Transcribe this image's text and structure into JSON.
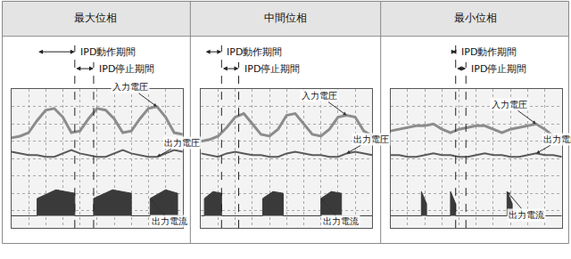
{
  "chart_data": [
    {
      "type": "line",
      "title": "最大位相",
      "xlim": [
        0,
        10
      ],
      "ylim": [
        -4,
        4
      ],
      "xticks": [
        0,
        1,
        2,
        3,
        4,
        5,
        6,
        7,
        8,
        9,
        10
      ],
      "yticks": [
        -4,
        -3,
        -2,
        -1,
        0,
        1,
        2,
        3,
        4
      ],
      "grid": true,
      "tick_labels": false,
      "series": [
        {
          "name": "入力電圧",
          "color": "#8c8c8c",
          "x": [
            0,
            0.5,
            1,
            1.5,
            2,
            2.5,
            3,
            3.5,
            4,
            4.5,
            5,
            5.5,
            6,
            6.5,
            7,
            7.5,
            8,
            8.5,
            9,
            9.5,
            10
          ],
          "values": [
            1.2,
            1.3,
            1.5,
            2.2,
            2.8,
            2.9,
            2.4,
            1.5,
            1.6,
            2.3,
            2.9,
            2.8,
            2.3,
            1.5,
            1.6,
            2.3,
            2.9,
            3.0,
            2.4,
            1.5,
            1.4
          ]
        },
        {
          "name": "出力電圧",
          "color": "#5a5a5a",
          "x": [
            0,
            0.5,
            1,
            1.5,
            2,
            2.5,
            3,
            3.5,
            4,
            4.5,
            5,
            5.5,
            6,
            6.5,
            7,
            7.5,
            8,
            8.5,
            9,
            9.5,
            10
          ],
          "values": [
            0.4,
            0.3,
            0.2,
            0.2,
            0.1,
            0.1,
            0.3,
            0.5,
            0.3,
            0.2,
            0.1,
            0.1,
            0.3,
            0.5,
            0.3,
            0.2,
            0.1,
            0.1,
            0.3,
            0.5,
            0.4
          ]
        },
        {
          "name": "出力電流",
          "color": "#3a3a3a",
          "type": "area",
          "x": [
            0,
            1.5,
            1.5,
            2.6,
            3.7,
            3.7,
            4.8,
            4.8,
            5.9,
            7.0,
            7.0,
            8.1,
            8.1,
            9.0,
            9.7,
            9.7,
            10
          ],
          "values": [
            -3.3,
            -3.3,
            -2.3,
            -1.8,
            -2.0,
            -3.3,
            -3.3,
            -2.3,
            -1.8,
            -2.0,
            -3.3,
            -3.3,
            -2.3,
            -1.8,
            -2.0,
            -3.3,
            -3.3
          ]
        }
      ],
      "annotations": [
        {
          "text": "IPD動作期間",
          "x0": 1.5,
          "x1": 3.7
        },
        {
          "text": "IPD停止期間",
          "x0": 3.7,
          "x1": 4.8
        }
      ]
    },
    {
      "type": "line",
      "title": "中間位相",
      "xlim": [
        0,
        10
      ],
      "ylim": [
        -4,
        4
      ],
      "xticks": [
        0,
        1,
        2,
        3,
        4,
        5,
        6,
        7,
        8,
        9,
        10
      ],
      "yticks": [
        -4,
        -3,
        -2,
        -1,
        0,
        1,
        2,
        3,
        4
      ],
      "grid": true,
      "tick_labels": false,
      "series": [
        {
          "name": "入力電圧",
          "color": "#8c8c8c",
          "x": [
            0,
            0.5,
            1,
            1.5,
            2,
            2.5,
            3,
            3.5,
            4,
            4.5,
            5,
            5.5,
            6,
            6.5,
            7,
            7.5,
            8,
            8.5,
            9,
            9.5,
            10
          ],
          "values": [
            1.0,
            1.1,
            1.3,
            1.8,
            2.4,
            2.6,
            2.0,
            1.4,
            1.3,
            1.7,
            2.5,
            2.6,
            2.0,
            1.4,
            1.3,
            1.7,
            2.4,
            2.5,
            2.4,
            1.6,
            1.3
          ]
        },
        {
          "name": "出力電圧",
          "color": "#5a5a5a",
          "x": [
            0,
            0.5,
            1,
            1.5,
            2,
            2.5,
            3,
            3.5,
            4,
            4.5,
            5,
            5.5,
            6,
            6.5,
            7,
            7.5,
            8,
            8.5,
            9,
            9.5,
            10
          ],
          "values": [
            0.3,
            0.2,
            0.1,
            0.3,
            0.4,
            0.3,
            0.2,
            0.2,
            0.1,
            0.1,
            0.3,
            0.4,
            0.3,
            0.2,
            0.2,
            0.1,
            0.1,
            0.3,
            0.4,
            0.3,
            0.2
          ]
        },
        {
          "name": "出力電流",
          "color": "#3a3a3a",
          "type": "area",
          "x": [
            0,
            0.2,
            0.2,
            0.7,
            1.2,
            1.2,
            3.6,
            3.6,
            4.2,
            4.8,
            4.8,
            7.0,
            7.0,
            7.6,
            8.2,
            8.2,
            10
          ],
          "values": [
            -3.3,
            -3.3,
            -2.3,
            -1.9,
            -2.0,
            -3.3,
            -3.3,
            -2.3,
            -1.9,
            -2.0,
            -3.3,
            -3.3,
            -2.3,
            -1.9,
            -2.0,
            -3.3,
            -3.3
          ]
        }
      ],
      "annotations": [
        {
          "text": "IPD動作期間",
          "x0": 0.2,
          "x1": 1.2
        },
        {
          "text": "IPD停止期間",
          "x0": 1.2,
          "x1": 2.2
        }
      ]
    },
    {
      "type": "line",
      "title": "最小位相",
      "xlim": [
        0,
        10
      ],
      "ylim": [
        -4,
        4
      ],
      "xticks": [
        0,
        1,
        2,
        3,
        4,
        5,
        6,
        7,
        8,
        9,
        10
      ],
      "yticks": [
        -4,
        -3,
        -2,
        -1,
        0,
        1,
        2,
        3,
        4
      ],
      "grid": true,
      "tick_labels": false,
      "series": [
        {
          "name": "入力電圧",
          "color": "#8c8c8c",
          "x": [
            0,
            0.5,
            1,
            1.5,
            2,
            2.5,
            3,
            3.5,
            4,
            4.5,
            5,
            5.5,
            6,
            6.5,
            7,
            7.5,
            8,
            8.5,
            9,
            9.5,
            10
          ],
          "values": [
            1.6,
            1.7,
            1.8,
            1.9,
            1.9,
            2.0,
            1.7,
            1.5,
            1.7,
            1.8,
            1.9,
            1.9,
            1.7,
            1.5,
            1.7,
            1.8,
            1.9,
            2.0,
            1.7,
            1.3,
            1.2
          ]
        },
        {
          "name": "出力電圧",
          "color": "#5a5a5a",
          "x": [
            0,
            0.5,
            1,
            1.5,
            2,
            2.5,
            3,
            3.5,
            4,
            4.5,
            5,
            5.5,
            6,
            6.5,
            7,
            7.5,
            8,
            8.5,
            9,
            9.5,
            10
          ],
          "values": [
            0.2,
            0.2,
            0.1,
            0.1,
            0.2,
            0.3,
            0.2,
            0.2,
            0.1,
            0.1,
            0.2,
            0.3,
            0.2,
            0.2,
            0.1,
            0.1,
            0.2,
            0.3,
            0.2,
            0.2,
            0.1
          ]
        },
        {
          "name": "出力電流",
          "color": "#3a3a3a",
          "type": "area",
          "x": [
            0,
            1.8,
            1.8,
            2.1,
            2.1,
            3.5,
            3.5,
            3.8,
            3.8,
            6.8,
            6.8,
            7.1,
            7.1,
            10
          ],
          "values": [
            -3.3,
            -3.3,
            -1.9,
            -2.6,
            -3.3,
            -3.3,
            -1.9,
            -2.6,
            -3.3,
            -3.3,
            -1.9,
            -2.6,
            -3.3,
            -3.3
          ]
        }
      ],
      "annotations": [
        {
          "text": "IPD動作期間",
          "x0": 3.5,
          "x1": 3.8
        },
        {
          "text": "IPD停止期間",
          "x0": 3.8,
          "x1": 4.4
        }
      ]
    }
  ]
}
